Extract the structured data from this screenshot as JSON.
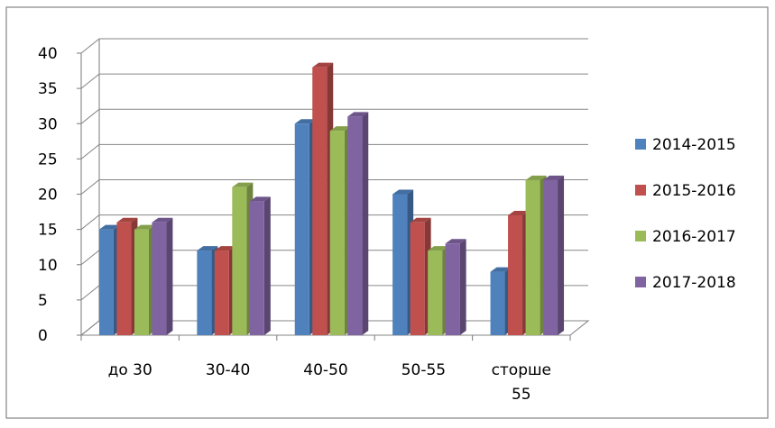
{
  "chart_data": {
    "type": "bar",
    "categories": [
      "до 30",
      "30-40",
      "40-50",
      "50-55",
      "сторше 55"
    ],
    "series": [
      {
        "name": "2014-2015",
        "color": "#4F81BD",
        "values": [
          15,
          12,
          30,
          20,
          9
        ]
      },
      {
        "name": "2015-2016",
        "color": "#C0504D",
        "values": [
          16,
          12,
          38,
          16,
          17
        ]
      },
      {
        "name": "2016-2017",
        "color": "#9BBB59",
        "values": [
          15,
          21,
          29,
          12,
          22
        ]
      },
      {
        "name": "2017-2018",
        "color": "#8064A2",
        "values": [
          16,
          19,
          31,
          13,
          22
        ]
      }
    ],
    "ylim": [
      0,
      40
    ],
    "yticks": [
      0,
      5,
      10,
      15,
      20,
      25,
      30,
      35,
      40
    ],
    "grid": true,
    "legend_position": "right",
    "style": "3d-clustered-columns"
  }
}
